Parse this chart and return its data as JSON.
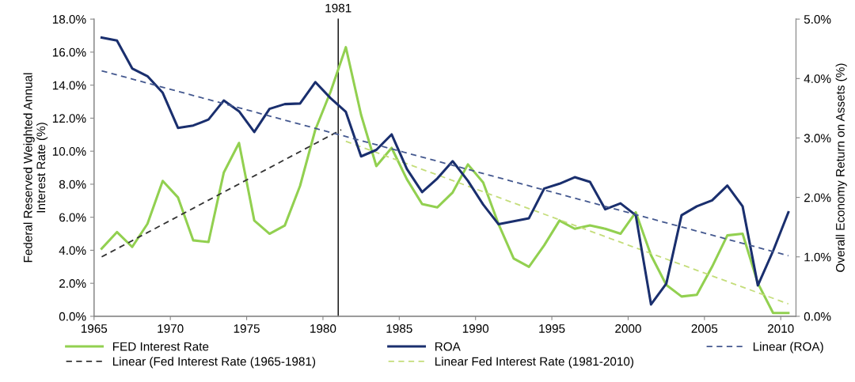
{
  "chart_data": {
    "type": "line",
    "ylabel": "Federal Reserved Weighted Annual\nInterest Rate (%)",
    "y2label": "Overall Economy Return on Assets (%)",
    "x": [
      1965.5,
      1966.5,
      1967.5,
      1968.5,
      1969.5,
      1970.5,
      1971.5,
      1972.5,
      1973.5,
      1974.5,
      1975.5,
      1976.5,
      1977.5,
      1978.5,
      1979.5,
      1980.5,
      1981.5,
      1982.5,
      1983.5,
      1984.5,
      1985.5,
      1986.5,
      1987.5,
      1988.5,
      1989.5,
      1990.5,
      1991.5,
      1992.5,
      1993.5,
      1994.5,
      1995.5,
      1996.5,
      1997.5,
      1998.5,
      1999.5,
      2000.5,
      2001.5,
      2002.5,
      2003.5,
      2004.5,
      2005.5,
      2006.5,
      2007.5,
      2008.5,
      2009.5,
      2010.5
    ],
    "series": [
      {
        "name": "FED Interest Rate",
        "color": "#92d050",
        "line_style": "solid",
        "values": [
          4.1,
          5.1,
          4.2,
          5.6,
          8.2,
          7.2,
          4.6,
          4.5,
          8.7,
          10.5,
          5.8,
          5.0,
          5.5,
          7.9,
          11.3,
          13.6,
          16.3,
          12.2,
          9.1,
          10.2,
          8.3,
          6.8,
          6.6,
          7.5,
          9.2,
          8.1,
          5.6,
          3.5,
          3.0,
          4.3,
          5.8,
          5.3,
          5.5,
          5.3,
          5.0,
          6.3,
          3.7,
          1.9,
          1.2,
          1.3,
          3.0,
          4.9,
          5.0,
          2.0,
          0.2,
          0.2
        ]
      },
      {
        "name": "ROA",
        "color": "#1a2f6e",
        "axis": "y2",
        "line_style": "solid",
        "values": [
          4.69,
          4.64,
          4.17,
          4.04,
          3.76,
          3.17,
          3.21,
          3.31,
          3.63,
          3.45,
          3.1,
          3.49,
          3.57,
          3.58,
          3.94,
          3.67,
          3.44,
          2.69,
          2.8,
          3.06,
          2.48,
          2.09,
          2.32,
          2.61,
          2.28,
          1.88,
          1.55,
          1.6,
          1.65,
          2.15,
          2.23,
          2.34,
          2.26,
          1.8,
          1.9,
          1.7,
          0.2,
          0.55,
          1.7,
          1.85,
          1.95,
          2.2,
          1.85,
          0.52,
          1.1,
          1.75
        ]
      },
      {
        "name": "Linear (ROA)",
        "color": "#44588f",
        "axis": "y2",
        "line_style": "dashed",
        "x": [
          1965.5,
          2010.5
        ],
        "values": [
          4.13,
          1.02
        ]
      },
      {
        "name": "Linear (Fed Interest Rate (1965-1981)",
        "color": "#333333",
        "line_style": "dashed",
        "x": [
          1965.5,
          1981.2
        ],
        "values": [
          3.6,
          11.3
        ]
      },
      {
        "name": "Linear Fed Interest Rate (1981-2010)",
        "color": "#c4dd7a",
        "line_style": "dashed",
        "x": [
          1981.5,
          2010.5
        ],
        "values": [
          10.6,
          0.75
        ]
      }
    ],
    "xlim": [
      1965,
      2011
    ],
    "xticks": [
      1965,
      1970,
      1975,
      1980,
      1985,
      1990,
      1995,
      2000,
      2005,
      2010
    ],
    "ylim": [
      0,
      18
    ],
    "yticks": [
      {
        "value": 0,
        "label": "0.0%"
      },
      {
        "value": 2,
        "label": "2.0%"
      },
      {
        "value": 4,
        "label": "4.0%"
      },
      {
        "value": 6,
        "label": "6.0%"
      },
      {
        "value": 8,
        "label": "8.0%"
      },
      {
        "value": 10,
        "label": "10.0%"
      },
      {
        "value": 12,
        "label": "12.0%"
      },
      {
        "value": 14,
        "label": "14.0%"
      },
      {
        "value": 16,
        "label": "16.0%"
      },
      {
        "value": 18,
        "label": "18.0%"
      }
    ],
    "y2lim": [
      0,
      5
    ],
    "y2ticks": [
      {
        "value": 0,
        "label": "0.0%"
      },
      {
        "value": 1,
        "label": "1.0%"
      },
      {
        "value": 2,
        "label": "2.0%"
      },
      {
        "value": 3,
        "label": "3.0%"
      },
      {
        "value": 4,
        "label": "4.0%"
      },
      {
        "value": 5,
        "label": "5.0%"
      }
    ],
    "ref_lines": [
      {
        "axis": "x",
        "value": 1981,
        "label": "1981",
        "color": "#000000",
        "line_style": "solid"
      }
    ],
    "legend": "bottom",
    "grid": false,
    "marker": "none"
  }
}
